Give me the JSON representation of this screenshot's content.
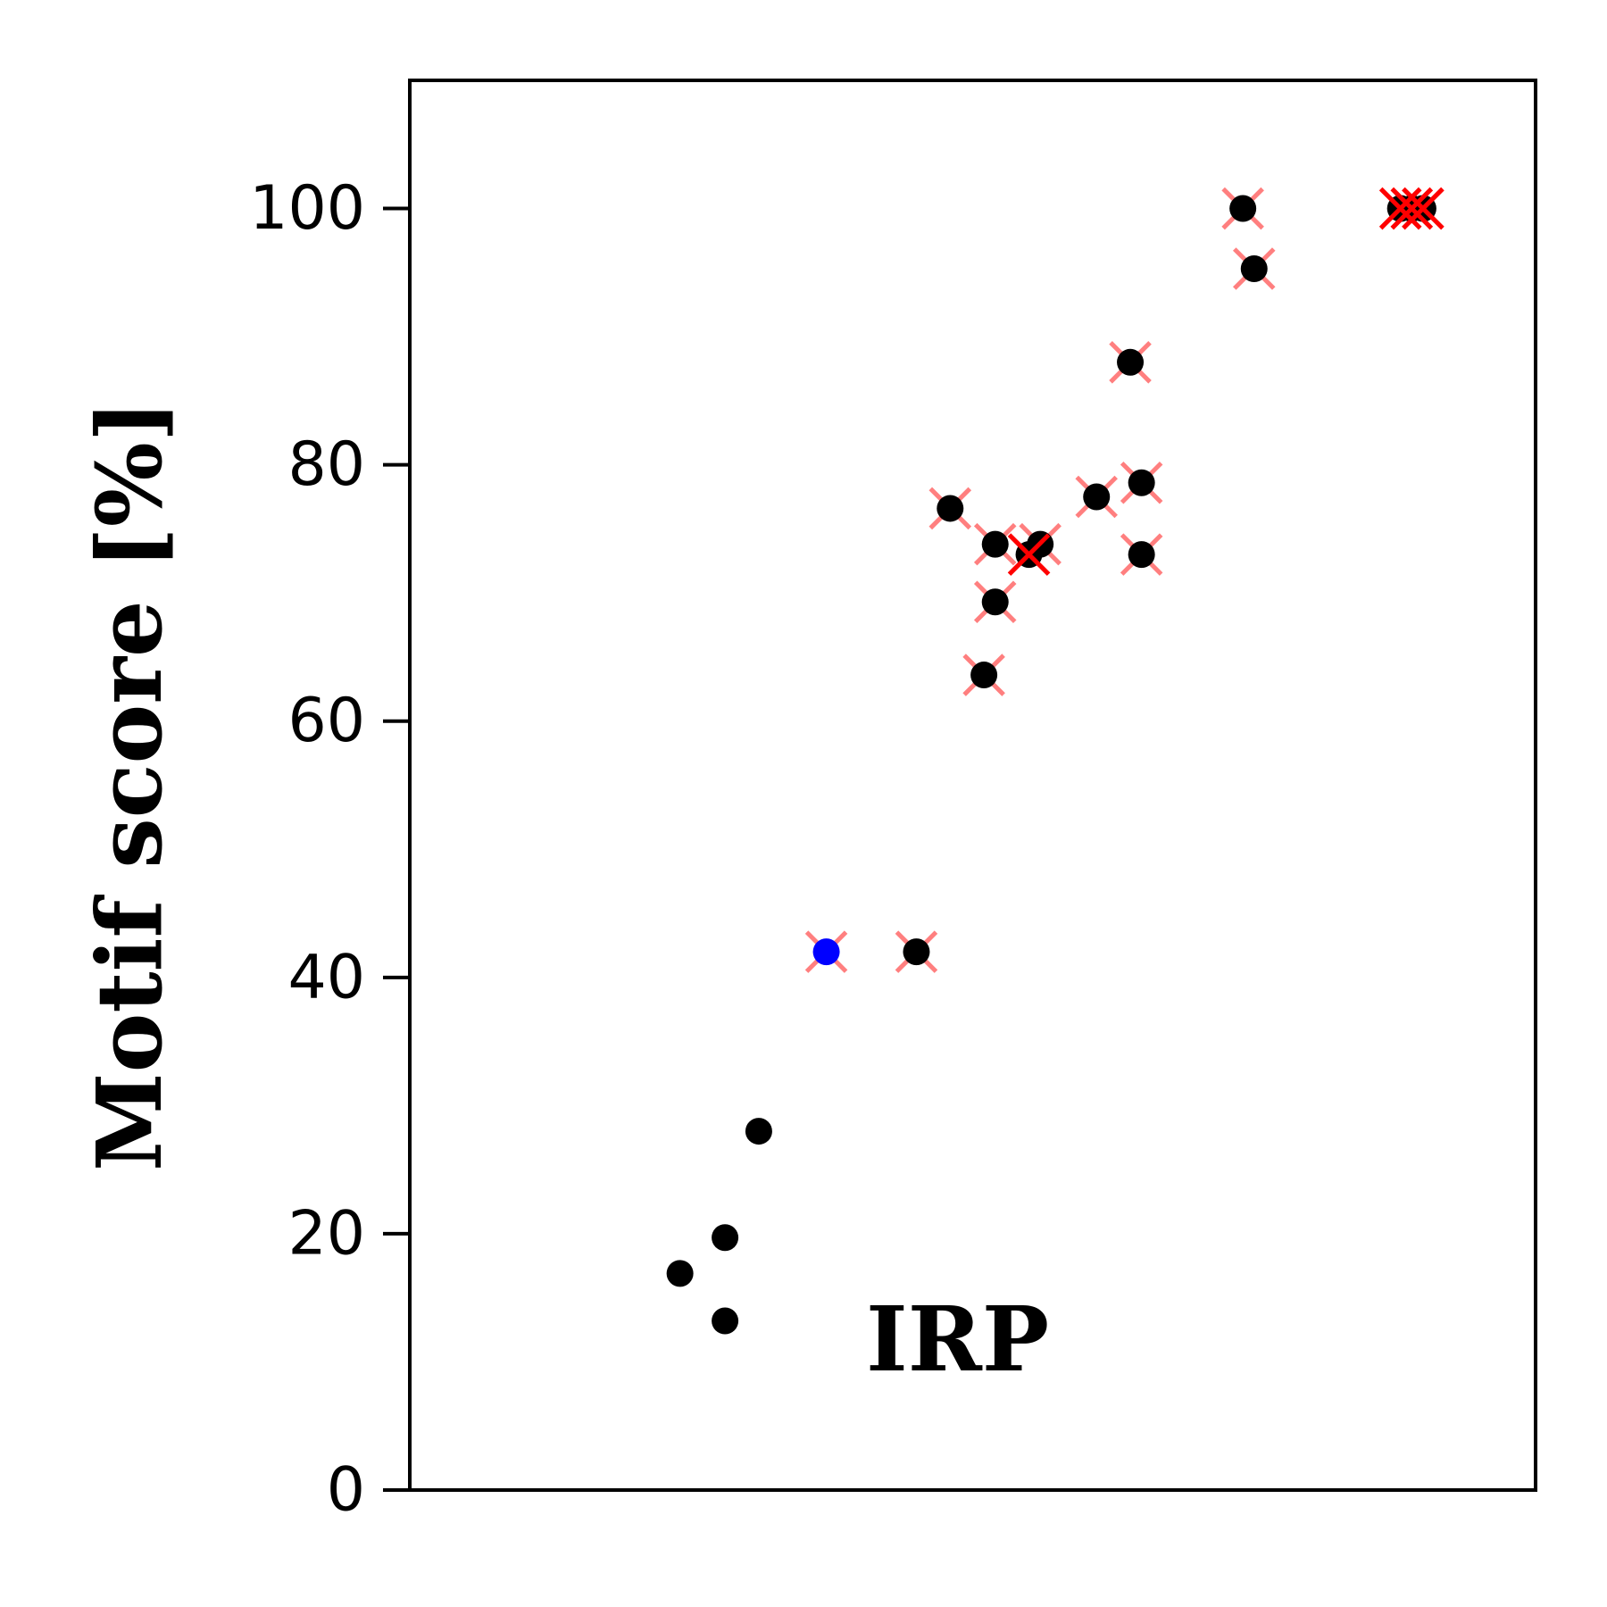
{
  "chart_data": {
    "type": "scatter",
    "ylabel": "Motif score [%]",
    "xlabel": "",
    "title": "",
    "ylim": [
      0,
      110
    ],
    "yticks": [
      0,
      20,
      40,
      60,
      80,
      100
    ],
    "annotation": "IRP",
    "grid": false,
    "points": [
      {
        "x": 0.24,
        "y": 16.9,
        "color": "#000000",
        "marked": false
      },
      {
        "x": 0.28,
        "y": 13.2,
        "color": "#000000",
        "marked": false
      },
      {
        "x": 0.28,
        "y": 19.7,
        "color": "#000000",
        "marked": false
      },
      {
        "x": 0.31,
        "y": 28.0,
        "color": "#000000",
        "marked": false
      },
      {
        "x": 0.37,
        "y": 42.0,
        "color": "#0000ff",
        "marked": true
      },
      {
        "x": 0.45,
        "y": 42.0,
        "color": "#000000",
        "marked": true
      },
      {
        "x": 0.48,
        "y": 76.6,
        "color": "#000000",
        "marked": true
      },
      {
        "x": 0.51,
        "y": 63.6,
        "color": "#000000",
        "marked": true
      },
      {
        "x": 0.52,
        "y": 69.3,
        "color": "#000000",
        "marked": true
      },
      {
        "x": 0.52,
        "y": 73.8,
        "color": "#000000",
        "marked": true
      },
      {
        "x": 0.55,
        "y": 73.0,
        "color": "#000000",
        "marked": true,
        "strong": true
      },
      {
        "x": 0.56,
        "y": 73.8,
        "color": "#000000",
        "marked": true
      },
      {
        "x": 0.61,
        "y": 77.5,
        "color": "#000000",
        "marked": true
      },
      {
        "x": 0.64,
        "y": 88.0,
        "color": "#000000",
        "marked": true
      },
      {
        "x": 0.65,
        "y": 78.6,
        "color": "#000000",
        "marked": true
      },
      {
        "x": 0.65,
        "y": 73.0,
        "color": "#000000",
        "marked": true
      },
      {
        "x": 0.74,
        "y": 100.0,
        "color": "#000000",
        "marked": true
      },
      {
        "x": 0.75,
        "y": 95.3,
        "color": "#000000",
        "marked": true
      },
      {
        "x": 0.88,
        "y": 100.0,
        "color": "#000000",
        "marked": true,
        "strong": true
      },
      {
        "x": 0.89,
        "y": 100.0,
        "color": "#000000",
        "marked": true,
        "strong": true
      },
      {
        "x": 0.9,
        "y": 100.0,
        "color": "#000000",
        "marked": true,
        "strong": true
      }
    ],
    "colors": {
      "point": "#000000",
      "highlight": "#0000ff",
      "cross": "#ff0000"
    }
  }
}
